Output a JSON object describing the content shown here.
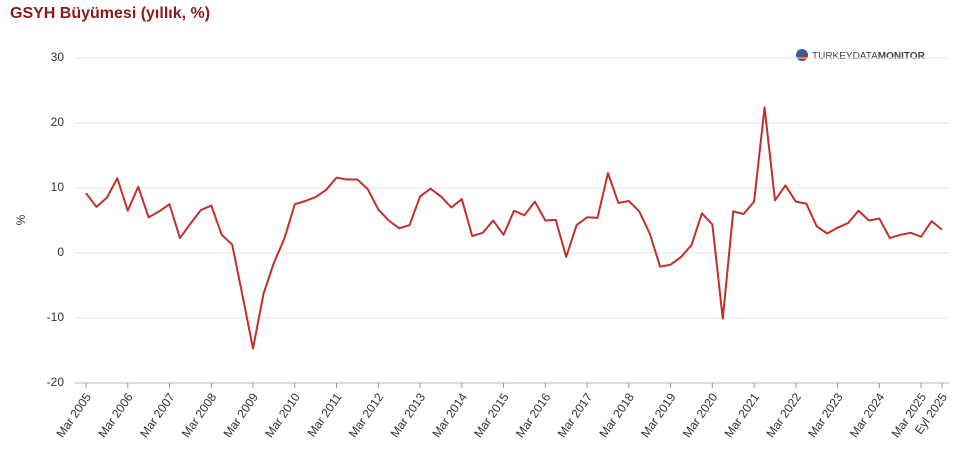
{
  "chart_data": {
    "type": "line",
    "title": "GSYH Büyümesi (yıllık, %)",
    "logo": [
      "TURKEY",
      "DATA",
      "MONITOR"
    ],
    "y_label": "%",
    "categories": [
      "Mar 2005",
      null,
      null,
      null,
      "Mar 2006",
      null,
      null,
      null,
      "Mar 2007",
      null,
      null,
      null,
      "Mar 2008",
      null,
      null,
      null,
      "Mar 2009",
      null,
      null,
      null,
      "Mar 2010",
      null,
      null,
      null,
      "Mar 2011",
      null,
      null,
      null,
      "Mar 2012",
      null,
      null,
      null,
      "Mar 2013",
      null,
      null,
      null,
      "Mar 2014",
      null,
      null,
      null,
      "Mar 2015",
      null,
      null,
      null,
      "Mar 2016",
      null,
      null,
      null,
      "Mar 2017",
      null,
      null,
      null,
      "Mar 2018",
      null,
      null,
      null,
      "Mar 2019",
      null,
      null,
      null,
      "Mar 2020",
      null,
      null,
      null,
      "Mar 2021",
      null,
      null,
      null,
      "Mar 2022",
      null,
      null,
      null,
      "Mar 2023",
      null,
      null,
      null,
      "Mar 2024",
      null,
      null,
      null,
      "Mar 2025",
      null,
      "Eyl 2025"
    ],
    "series": [
      {
        "name": "GSYH Büyümesi",
        "color": "#c0302c",
        "values": [
          9.2,
          7.1,
          8.5,
          11.5,
          6.5,
          10.2,
          5.5,
          6.4,
          7.5,
          2.3,
          4.5,
          6.6,
          7.3,
          2.8,
          1.3,
          -6.6,
          -14.7,
          -6.3,
          -1.5,
          2.2,
          7.5,
          8.0,
          8.6,
          9.7,
          11.6,
          11.3,
          11.3,
          9.8,
          6.7,
          5.0,
          3.8,
          4.3,
          8.7,
          9.9,
          8.7,
          7.0,
          8.3,
          2.6,
          3.1,
          5.0,
          2.8,
          6.5,
          5.8,
          7.9,
          5.0,
          5.1,
          -0.6,
          4.3,
          5.5,
          5.4,
          12.3,
          7.7,
          8.0,
          6.4,
          3.0,
          -2.1,
          -1.8,
          -0.6,
          1.2,
          6.1,
          4.4,
          -10.1,
          6.4,
          6.0,
          7.9,
          22.4,
          8.1,
          10.4,
          7.9,
          7.6,
          4.1,
          3.0,
          3.9,
          4.6,
          6.5,
          5.0,
          5.3,
          2.3,
          2.8,
          3.1,
          2.5,
          4.9,
          3.6
        ]
      }
    ],
    "ylim": [
      -20,
      30
    ],
    "yticks": [
      -20,
      -10,
      0,
      10,
      20,
      30
    ],
    "grid": true
  }
}
